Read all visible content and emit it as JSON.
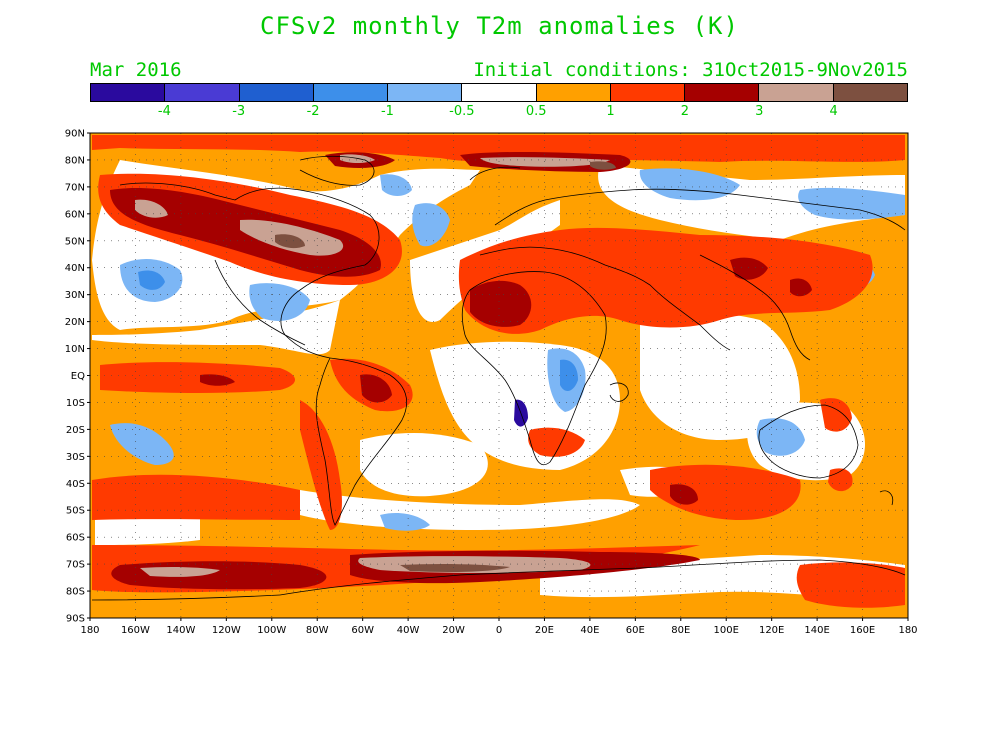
{
  "title": "CFSv2 monthly T2m anomalies (K)",
  "forecast_month": "Mar 2016",
  "initial_conditions": "Initial conditions: 31Oct2015-9Nov2015",
  "colorbar": {
    "colors": [
      "#2a0a9e",
      "#4a3bd4",
      "#1f5fd0",
      "#3d8fea",
      "#7cb6f5",
      "#ffffff",
      "#ffa000",
      "#ff3a00",
      "#a50000",
      "#c9a293",
      "#7d5040"
    ],
    "labels": [
      "-4",
      "-3",
      "-2",
      "-1",
      "-0.5",
      "0.5",
      "1",
      "2",
      "3",
      "4"
    ]
  },
  "map": {
    "lat_labels": [
      "90N",
      "80N",
      "70N",
      "60N",
      "50N",
      "40N",
      "30N",
      "20N",
      "10N",
      "EQ",
      "10S",
      "20S",
      "30S",
      "40S",
      "50S",
      "60S",
      "70S",
      "80S",
      "90S"
    ],
    "lon_labels": [
      "180",
      "160W",
      "140W",
      "120W",
      "100W",
      "80W",
      "60W",
      "40W",
      "20W",
      "0",
      "20E",
      "40E",
      "60E",
      "80E",
      "100E",
      "120E",
      "140E",
      "160E",
      "180"
    ]
  }
}
